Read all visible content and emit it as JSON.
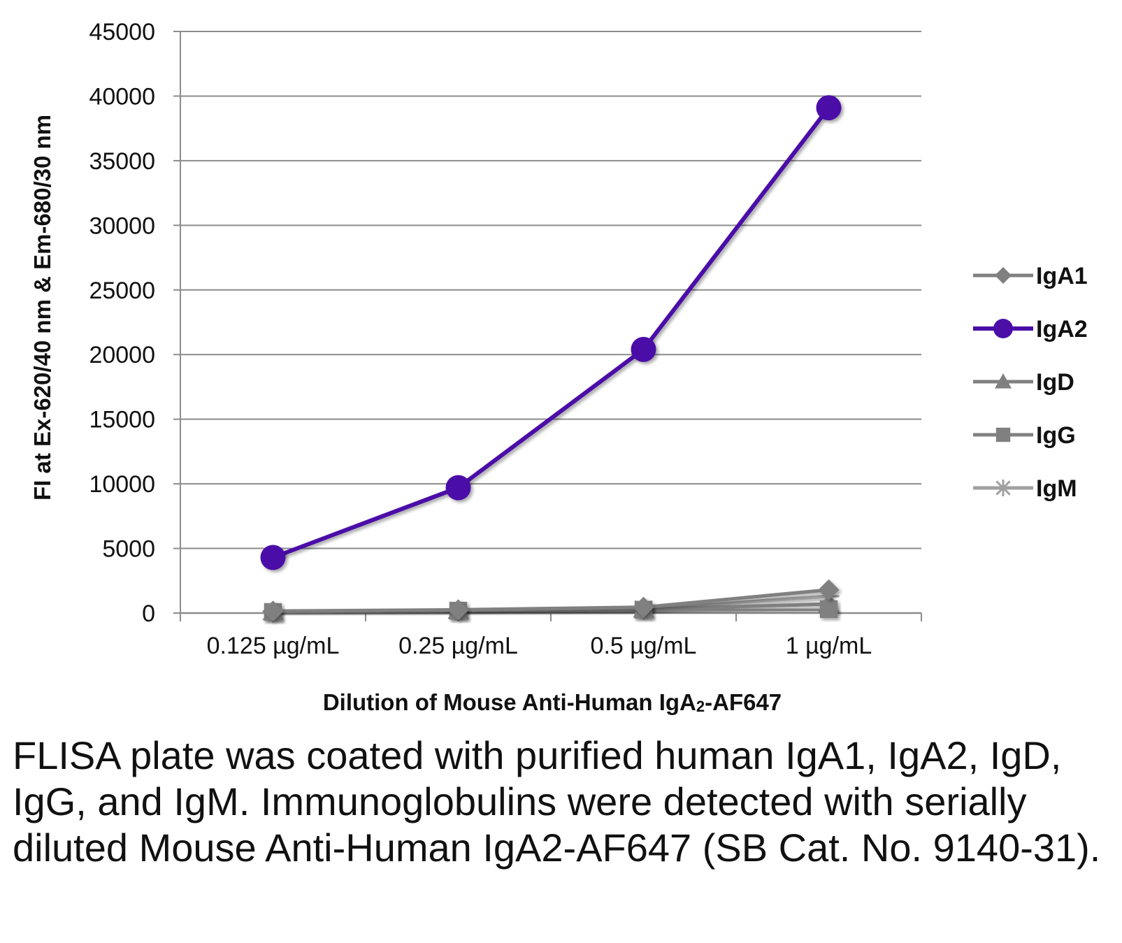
{
  "chart_data": {
    "type": "line",
    "xlabel_main": "Dilution of Mouse Anti-Human IgA",
    "xlabel_sub": "2",
    "xlabel_tail": "-AF647",
    "ylabel": "FI at Ex-620/40 nm & Em-680/30 nm",
    "ylim": [
      0,
      45000
    ],
    "yticks": [
      0,
      5000,
      10000,
      15000,
      20000,
      25000,
      30000,
      35000,
      40000,
      45000
    ],
    "grid": true,
    "legend_position": "right",
    "categories": [
      "0.125 µg/mL",
      "0.25 µg/mL",
      "0.5 µg/mL",
      "1 µg/mL"
    ],
    "series": [
      {
        "name": "IgA1",
        "values": [
          150,
          250,
          450,
          1800
        ],
        "color": "#808080",
        "marker": "diamond"
      },
      {
        "name": "IgA2",
        "values": [
          4300,
          9700,
          20400,
          39100
        ],
        "color": "#4B0FA8",
        "marker": "circle"
      },
      {
        "name": "IgD",
        "values": [
          100,
          200,
          300,
          700
        ],
        "color": "#808080",
        "marker": "triangle"
      },
      {
        "name": "IgG",
        "values": [
          80,
          180,
          250,
          300
        ],
        "color": "#808080",
        "marker": "square"
      },
      {
        "name": "IgM",
        "values": [
          100,
          200,
          300,
          1300
        ],
        "color": "#A0A0A0",
        "marker": "star"
      }
    ]
  },
  "caption": "FLISA plate was coated with purified human IgA1, IgA2, IgD, IgG, and IgM.  Immunoglobulins were detected with serially diluted Mouse Anti-Human IgA2-AF647 (SB Cat. No. 9140-31)."
}
